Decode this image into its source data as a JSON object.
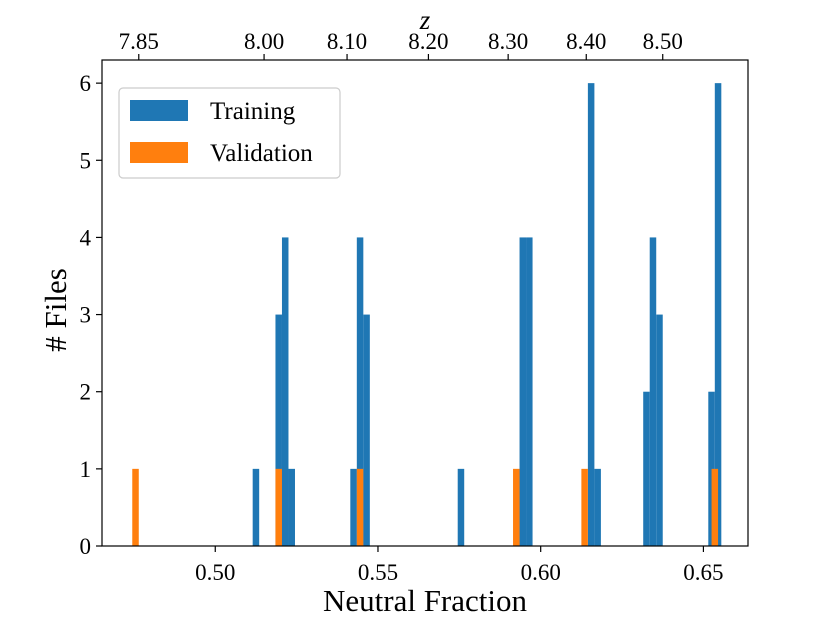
{
  "chart_data": {
    "type": "bar",
    "subtype": "histogram",
    "xlabel": "Neutral Fraction",
    "ylabel": "# Files",
    "top_axis_label": "z",
    "xlim": [
      0.4652,
      0.6637
    ],
    "ylim": [
      0,
      6.3
    ],
    "bin_width": 0.002,
    "xticks": [
      0.5,
      0.55,
      0.6,
      0.65
    ],
    "xtick_labels": [
      "0.50",
      "0.55",
      "0.60",
      "0.65"
    ],
    "yticks": [
      0,
      1,
      2,
      3,
      4,
      5,
      6
    ],
    "ytick_labels": [
      "0",
      "1",
      "2",
      "3",
      "4",
      "5",
      "6"
    ],
    "top_ticks": [
      {
        "x": 0.4765,
        "label": "7.85"
      },
      {
        "x": 0.515,
        "label": "8.00"
      },
      {
        "x": 0.5405,
        "label": "8.10"
      },
      {
        "x": 0.5655,
        "label": "8.20"
      },
      {
        "x": 0.59,
        "label": "8.30"
      },
      {
        "x": 0.614,
        "label": "8.40"
      },
      {
        "x": 0.6375,
        "label": "8.50"
      }
    ],
    "legend": {
      "position": "upper-left",
      "entries": [
        {
          "name": "Training",
          "color": "#1f77b4"
        },
        {
          "name": "Validation",
          "color": "#ff7f0e"
        }
      ]
    },
    "series": [
      {
        "name": "Training",
        "color": "#1f77b4",
        "bars": [
          {
            "x": 0.5125,
            "value": 1
          },
          {
            "x": 0.5195,
            "value": 3
          },
          {
            "x": 0.5215,
            "value": 4
          },
          {
            "x": 0.5235,
            "value": 1
          },
          {
            "x": 0.5425,
            "value": 1
          },
          {
            "x": 0.5445,
            "value": 4
          },
          {
            "x": 0.5465,
            "value": 3
          },
          {
            "x": 0.5755,
            "value": 1
          },
          {
            "x": 0.5945,
            "value": 4
          },
          {
            "x": 0.5965,
            "value": 4
          },
          {
            "x": 0.6155,
            "value": 6
          },
          {
            "x": 0.6175,
            "value": 1
          },
          {
            "x": 0.6325,
            "value": 2
          },
          {
            "x": 0.6345,
            "value": 4
          },
          {
            "x": 0.6365,
            "value": 3
          },
          {
            "x": 0.6525,
            "value": 2
          },
          {
            "x": 0.6545,
            "value": 6
          }
        ]
      },
      {
        "name": "Validation",
        "color": "#ff7f0e",
        "bars": [
          {
            "x": 0.4755,
            "value": 1
          },
          {
            "x": 0.5195,
            "value": 1
          },
          {
            "x": 0.5445,
            "value": 1
          },
          {
            "x": 0.5925,
            "value": 1
          },
          {
            "x": 0.6135,
            "value": 1
          },
          {
            "x": 0.6535,
            "value": 1
          }
        ]
      }
    ]
  }
}
